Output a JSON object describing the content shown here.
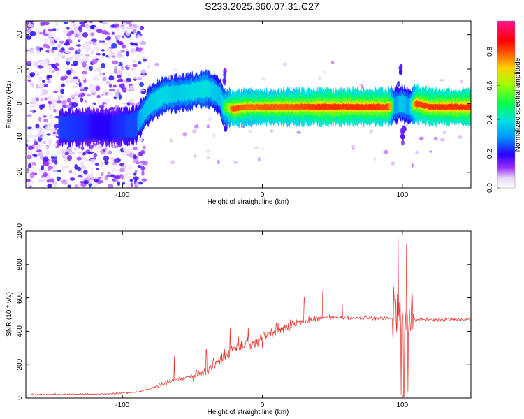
{
  "page": {
    "title": "S233.2025.360.07.31.C27"
  },
  "colors": {
    "snr_line": "#e8302a",
    "frame": "#000000"
  },
  "chart_data": [
    {
      "type": "heatmap",
      "title": "",
      "xlabel": "Height of straight line (km)",
      "ylabel": "Frequency (Hz)",
      "xlim": [
        -169,
        149
      ],
      "ylim": [
        -24.5,
        24
      ],
      "xticks": [
        -100,
        0,
        100
      ],
      "xtick_labels": [
        "-100",
        "0",
        "100"
      ],
      "yticks": [
        -20,
        -10,
        0,
        10,
        20
      ],
      "ytick_labels": [
        "-20",
        "-10",
        "0",
        "10",
        "20"
      ],
      "colorbar": {
        "label": "Normalized spectral amplitude",
        "range": [
          0,
          0.98
        ],
        "ticks": [
          0.0,
          0.2,
          0.4,
          0.6,
          0.8
        ],
        "tick_labels": [
          "0.0",
          "0.2",
          "0.4",
          "0.6",
          "0.8"
        ],
        "colormap": [
          "#ffffff",
          "#d9c2f5",
          "#8a2be2",
          "#0000ff",
          "#00c8ff",
          "#00ff80",
          "#c8ff00",
          "#ff8000",
          "#ff0000",
          "#ff1493"
        ]
      },
      "ridge": {
        "x": [
          -145,
          -130,
          -120,
          -110,
          -100,
          -95,
          -90,
          -85,
          -80,
          -70,
          -60,
          -50,
          -45,
          -40,
          -35,
          -30,
          -28,
          -20,
          -10,
          0,
          20,
          40,
          60,
          80,
          90,
          95,
          100,
          105,
          110,
          120,
          149
        ],
        "freq": [
          -7,
          -7,
          -6.5,
          -7,
          -6.5,
          -6.5,
          -6,
          -3,
          0,
          2.5,
          3,
          3.5,
          4,
          4.5,
          3.5,
          2,
          -1,
          -1.5,
          -1,
          -1,
          -1,
          -1,
          -1,
          -1,
          -1,
          -0.5,
          0,
          -1,
          0,
          -1,
          -1
        ],
        "amplitude": [
          0.3,
          0.25,
          0.2,
          0.2,
          0.25,
          0.3,
          0.3,
          0.35,
          0.4,
          0.45,
          0.4,
          0.45,
          0.45,
          0.5,
          0.4,
          0.35,
          0.45,
          0.9,
          0.8,
          0.85,
          0.85,
          0.95,
          0.95,
          0.95,
          0.9,
          0.3,
          0.4,
          0.3,
          0.9,
          0.95,
          0.95
        ]
      }
    },
    {
      "type": "line",
      "title": "",
      "xlabel": "Height of straight line (km)",
      "ylabel": "SNR (10 * v/v)",
      "xlim": [
        -169,
        149
      ],
      "ylim": [
        0,
        1000
      ],
      "xticks": [
        -100,
        0,
        100
      ],
      "xtick_labels": [
        "-100",
        "0",
        "100"
      ],
      "yticks": [
        0,
        200,
        400,
        600,
        800,
        1000
      ],
      "ytick_labels": [
        "0",
        "200",
        "400",
        "600",
        "800",
        "1000"
      ],
      "series": [
        {
          "name": "SNR",
          "trend_x": [
            -169,
            -140,
            -110,
            -90,
            -80,
            -70,
            -60,
            -50,
            -40,
            -30,
            -20,
            -10,
            0,
            10,
            20,
            30,
            40,
            50,
            60,
            80,
            95,
            98,
            100,
            102,
            105,
            110,
            120,
            149
          ],
          "trend_y": [
            20,
            22,
            25,
            35,
            55,
            90,
            110,
            130,
            160,
            230,
            300,
            330,
            360,
            400,
            440,
            460,
            480,
            480,
            480,
            480,
            480,
            480,
            470,
            470,
            480,
            470,
            470,
            470
          ],
          "spikes": [
            {
              "x": -63,
              "y": 250
            },
            {
              "x": -40,
              "y": 290
            },
            {
              "x": -35,
              "y": 240
            },
            {
              "x": -23,
              "y": 420
            },
            {
              "x": -17,
              "y": 370
            },
            {
              "x": -10,
              "y": 420
            },
            {
              "x": 0,
              "y": 300
            },
            {
              "x": 10,
              "y": 450
            },
            {
              "x": 20,
              "y": 470
            },
            {
              "x": 30,
              "y": 600
            },
            {
              "x": 43,
              "y": 645
            },
            {
              "x": 57,
              "y": 560
            },
            {
              "x": 97,
              "y": 955
            },
            {
              "x": 99,
              "y": 940
            },
            {
              "x": 101,
              "y": 1000
            },
            {
              "x": 103,
              "y": 920
            },
            {
              "x": 107,
              "y": 620
            }
          ],
          "dips": [
            {
              "x": 99,
              "y": 20
            },
            {
              "x": 101,
              "y": 10
            },
            {
              "x": 104,
              "y": 40
            }
          ]
        }
      ]
    }
  ]
}
